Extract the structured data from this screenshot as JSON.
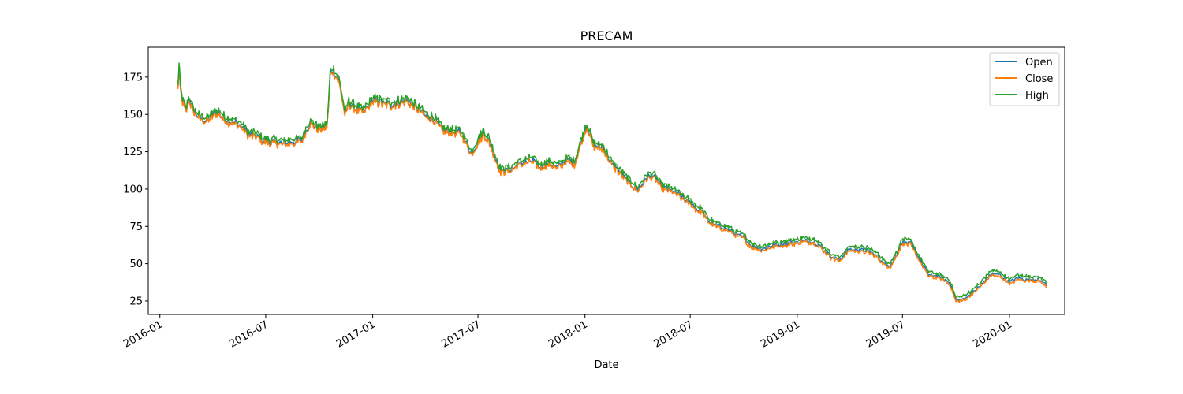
{
  "chart_data": {
    "type": "line",
    "title": "PRECAM",
    "xlabel": "Date",
    "ylabel": "",
    "xlim": [
      "2015-12-12",
      "2020-04-05"
    ],
    "ylim": [
      16,
      195
    ],
    "yticks": [
      25,
      50,
      75,
      100,
      125,
      150,
      175
    ],
    "xticks": [
      "2016-01",
      "2016-07",
      "2017-01",
      "2017-07",
      "2018-01",
      "2018-07",
      "2019-01",
      "2019-07",
      "2020-01"
    ],
    "grid": false,
    "legend_position": "top-right",
    "series": [
      {
        "name": "Open",
        "color": "#1f77b4",
        "offset": -0.5
      },
      {
        "name": "Close",
        "color": "#ff7f0e",
        "offset": -1.5
      },
      {
        "name": "High",
        "color": "#2ca02c",
        "offset": 1.5
      }
    ],
    "anchors": {
      "dates": [
        "2016-02-01",
        "2016-02-03",
        "2016-02-06",
        "2016-02-10",
        "2016-02-15",
        "2016-02-20",
        "2016-02-25",
        "2016-03-01",
        "2016-03-10",
        "2016-03-20",
        "2016-04-01",
        "2016-04-10",
        "2016-04-20",
        "2016-05-01",
        "2016-05-10",
        "2016-05-20",
        "2016-06-01",
        "2016-06-10",
        "2016-06-20",
        "2016-07-01",
        "2016-07-15",
        "2016-08-01",
        "2016-08-15",
        "2016-09-01",
        "2016-09-15",
        "2016-10-01",
        "2016-10-15",
        "2016-10-20",
        "2016-10-25",
        "2016-11-01",
        "2016-11-05",
        "2016-11-10",
        "2016-11-15",
        "2016-11-20",
        "2016-12-01",
        "2016-12-15",
        "2017-01-01",
        "2017-01-15",
        "2017-02-01",
        "2017-02-15",
        "2017-03-01",
        "2017-03-15",
        "2017-04-01",
        "2017-04-15",
        "2017-05-01",
        "2017-05-15",
        "2017-06-01",
        "2017-06-10",
        "2017-06-20",
        "2017-07-01",
        "2017-07-10",
        "2017-07-20",
        "2017-08-01",
        "2017-08-10",
        "2017-08-20",
        "2017-09-01",
        "2017-09-15",
        "2017-10-01",
        "2017-10-15",
        "2017-11-01",
        "2017-11-15",
        "2017-12-01",
        "2017-12-15",
        "2018-01-01",
        "2018-01-05",
        "2018-01-15",
        "2018-02-01",
        "2018-02-15",
        "2018-03-01",
        "2018-03-15",
        "2018-04-01",
        "2018-04-10",
        "2018-04-20",
        "2018-05-01",
        "2018-05-15",
        "2018-06-01",
        "2018-06-10",
        "2018-06-20",
        "2018-07-01",
        "2018-07-10",
        "2018-07-20",
        "2018-08-01",
        "2018-08-15",
        "2018-09-01",
        "2018-09-15",
        "2018-10-01",
        "2018-10-15",
        "2018-11-01",
        "2018-11-15",
        "2018-12-01",
        "2018-12-15",
        "2019-01-01",
        "2019-01-15",
        "2019-02-01",
        "2019-02-15",
        "2019-03-01",
        "2019-03-15",
        "2019-04-01",
        "2019-04-15",
        "2019-05-01",
        "2019-05-10",
        "2019-05-20",
        "2019-06-01",
        "2019-06-10",
        "2019-06-20",
        "2019-07-01",
        "2019-07-15",
        "2019-08-01",
        "2019-08-15",
        "2019-09-01",
        "2019-09-10",
        "2019-09-20",
        "2019-10-01",
        "2019-10-15",
        "2019-11-01",
        "2019-11-15",
        "2019-12-01",
        "2019-12-15",
        "2020-01-01",
        "2020-01-15",
        "2020-02-01",
        "2020-02-15",
        "2020-02-25",
        "2020-03-05"
      ],
      "values": [
        168,
        182,
        162,
        158,
        152,
        162,
        155,
        152,
        148,
        146,
        150,
        152,
        148,
        146,
        145,
        143,
        137,
        136,
        135,
        132,
        132,
        131,
        132,
        133,
        145,
        140,
        143,
        178,
        180,
        175,
        172,
        160,
        150,
        158,
        155,
        152,
        160,
        158,
        157,
        158,
        160,
        156,
        150,
        148,
        140,
        139,
        138,
        132,
        124,
        132,
        138,
        133,
        120,
        112,
        113,
        115,
        118,
        120,
        115,
        118,
        115,
        120,
        118,
        140,
        143,
        130,
        128,
        118,
        112,
        106,
        100,
        104,
        109,
        108,
        101,
        99,
        97,
        94,
        91,
        88,
        86,
        79,
        76,
        74,
        71,
        68,
        62,
        60,
        62,
        63,
        64,
        65,
        66,
        65,
        60,
        55,
        53,
        60,
        60,
        59,
        58,
        55,
        50,
        49,
        56,
        65,
        64,
        52,
        43,
        42,
        40,
        38,
        26,
        27,
        32,
        37,
        44,
        43,
        38,
        41,
        40,
        40,
        39,
        36
      ]
    }
  }
}
